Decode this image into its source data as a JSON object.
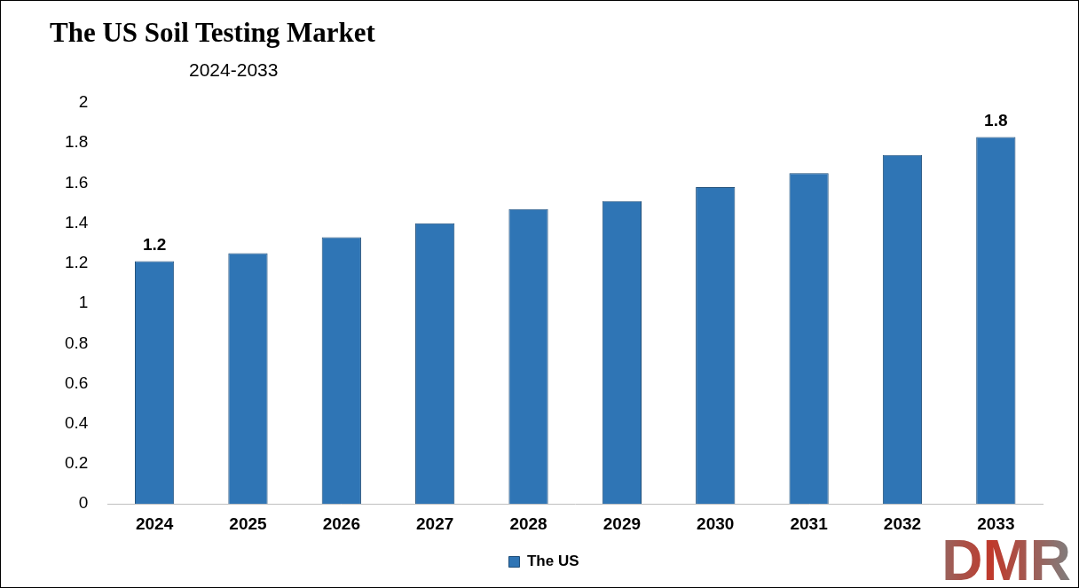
{
  "chart_data": {
    "type": "bar",
    "title": "The US Soil Testing Market",
    "subtitle": "2024-2033",
    "categories": [
      "2024",
      "2025",
      "2026",
      "2027",
      "2028",
      "2029",
      "2030",
      "2031",
      "2032",
      "2033"
    ],
    "series": [
      {
        "name": "The US",
        "color": "#2f75b5",
        "values": [
          1.21,
          1.25,
          1.33,
          1.4,
          1.47,
          1.51,
          1.58,
          1.65,
          1.74,
          1.83
        ],
        "value_labels": [
          "1.2",
          null,
          null,
          null,
          null,
          null,
          null,
          null,
          null,
          "1.8"
        ]
      }
    ],
    "ylim": [
      0,
      2
    ],
    "yticks": [
      0,
      0.2,
      0.4,
      0.6,
      0.8,
      1,
      1.2,
      1.4,
      1.6,
      1.8,
      2
    ],
    "grid": false,
    "legend": "bottom",
    "data_labels": true,
    "annotations": [
      "DMR"
    ]
  }
}
